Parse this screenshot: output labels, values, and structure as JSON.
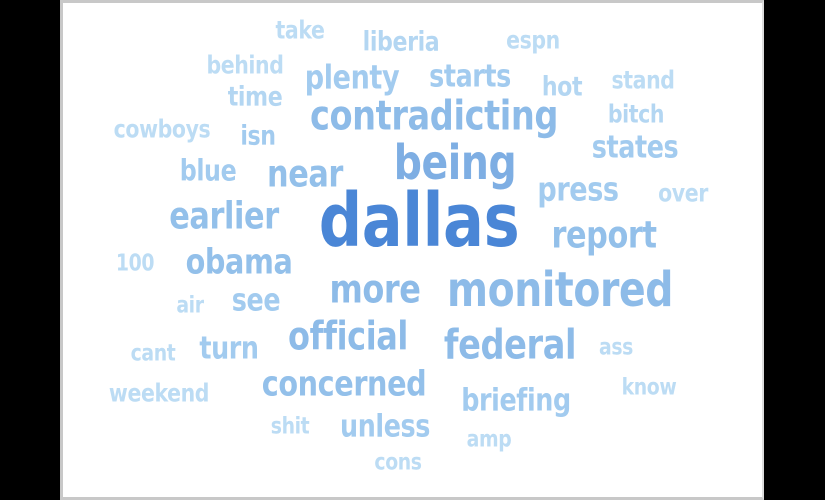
{
  "word_cloud": {
    "words": [
      {
        "text": "dallas",
        "color": "#4a86d6"
      },
      {
        "text": "being",
        "color": "#7eaee3"
      },
      {
        "text": "monitored",
        "color": "#8dbbe8"
      },
      {
        "text": "contradicting",
        "color": "#8dbbe8"
      },
      {
        "text": "federal",
        "color": "#8dbbe8"
      },
      {
        "text": "official",
        "color": "#8dbbe8"
      },
      {
        "text": "more",
        "color": "#8dbbe8"
      },
      {
        "text": "report",
        "color": "#93c0ea"
      },
      {
        "text": "earlier",
        "color": "#93c0ea"
      },
      {
        "text": "near",
        "color": "#93c0ea"
      },
      {
        "text": "obama",
        "color": "#93c0ea"
      },
      {
        "text": "concerned",
        "color": "#93c0ea"
      },
      {
        "text": "press",
        "color": "#a2cbef"
      },
      {
        "text": "plenty",
        "color": "#a2cbef"
      },
      {
        "text": "starts",
        "color": "#a2cbef"
      },
      {
        "text": "states",
        "color": "#a2cbef"
      },
      {
        "text": "briefing",
        "color": "#a2cbef"
      },
      {
        "text": "unless",
        "color": "#a2cbef"
      },
      {
        "text": "see",
        "color": "#a2cbef"
      },
      {
        "text": "turn",
        "color": "#a2cbef"
      },
      {
        "text": "blue",
        "color": "#a2cbef"
      },
      {
        "text": "isn",
        "color": "#a2cbef"
      },
      {
        "text": "time",
        "color": "#b3d6f2"
      },
      {
        "text": "liberia",
        "color": "#b3d6f2"
      },
      {
        "text": "hot",
        "color": "#b3d6f2"
      },
      {
        "text": "bitch",
        "color": "#b3d6f2"
      },
      {
        "text": "take",
        "color": "#bcdcf4"
      },
      {
        "text": "espn",
        "color": "#bcdcf4"
      },
      {
        "text": "behind",
        "color": "#bcdcf4"
      },
      {
        "text": "stand",
        "color": "#bcdcf4"
      },
      {
        "text": "cowboys",
        "color": "#bcdcf4"
      },
      {
        "text": "over",
        "color": "#bcdcf4"
      },
      {
        "text": "100",
        "color": "#bcdcf4"
      },
      {
        "text": "air",
        "color": "#bcdcf4"
      },
      {
        "text": "ass",
        "color": "#bcdcf4"
      },
      {
        "text": "cant",
        "color": "#bcdcf4"
      },
      {
        "text": "know",
        "color": "#bcdcf4"
      },
      {
        "text": "weekend",
        "color": "#bcdcf4"
      },
      {
        "text": "shit",
        "color": "#bcdcf4"
      },
      {
        "text": "amp",
        "color": "#bcdcf4"
      },
      {
        "text": "cons",
        "color": "#bcdcf4"
      }
    ]
  }
}
